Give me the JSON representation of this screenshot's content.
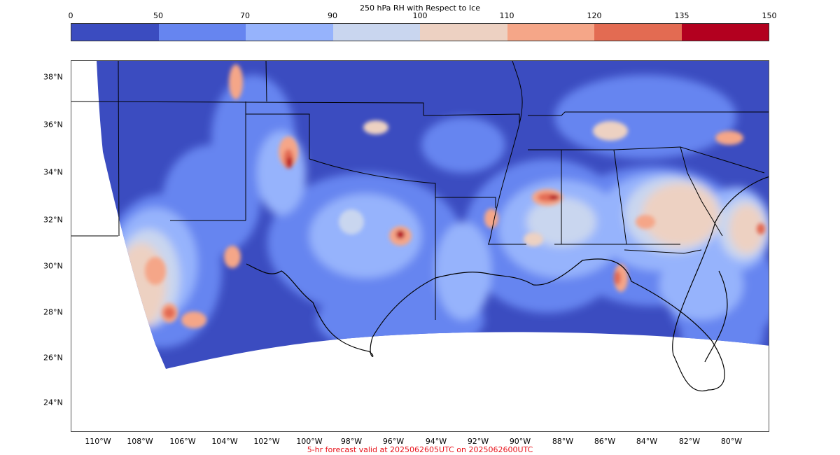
{
  "colorbar": {
    "title": "250 hPa RH with Respect to Ice",
    "ticks": [
      "0",
      "50",
      "70",
      "90",
      "100",
      "110",
      "120",
      "135",
      "150"
    ],
    "colors": [
      "#3b4cc0",
      "#6685f0",
      "#96b3fc",
      "#c9d6ef",
      "#edd1c2",
      "#f5a688",
      "#e36b52",
      "#b3001f"
    ]
  },
  "map": {
    "lat_labels": [
      "38°N",
      "36°N",
      "34°N",
      "32°N",
      "30°N",
      "28°N",
      "26°N",
      "24°N"
    ],
    "lon_labels": [
      "110°W",
      "108°W",
      "106°W",
      "104°W",
      "102°W",
      "100°W",
      "98°W",
      "96°W",
      "94°W",
      "92°W",
      "90°W",
      "88°W",
      "86°W",
      "84°W",
      "82°W",
      "80°W"
    ]
  },
  "footer": {
    "caption": "5-hr forecast valid at 2025062605UTC on 2025062600UTC"
  }
}
